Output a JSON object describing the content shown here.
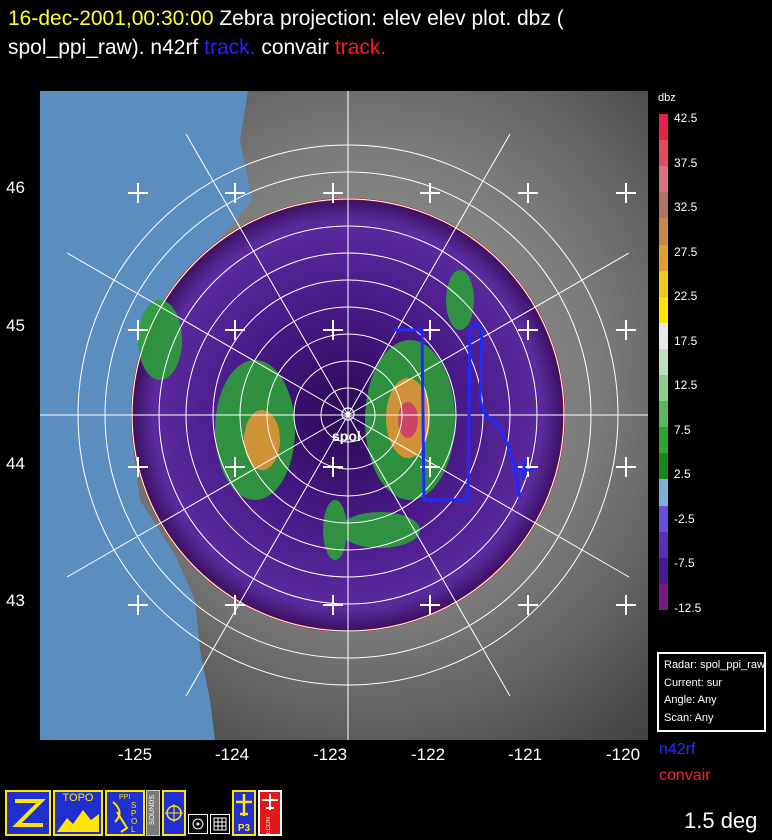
{
  "title": {
    "datetime": "16-dec-2001,00:30:00",
    "projection": "Zebra projection: elev elev  plot.  dbz (",
    "source": "spol_ppi_raw).   n42rf",
    "track1": "track.",
    "mid": "  convair",
    "track2": "track."
  },
  "map": {
    "radar_label": "spol",
    "y_labels": [
      "46",
      "45",
      "44",
      "43"
    ],
    "x_labels": [
      "-125",
      "-124",
      "-123",
      "-122",
      "-121",
      "-120"
    ]
  },
  "colorbar": {
    "units": "dbz",
    "labels": [
      "42.5",
      "37.5",
      "32.5",
      "27.5",
      "22.5",
      "17.5",
      "12.5",
      "7.5",
      "2.5",
      "-2.5",
      "-7.5",
      "-12.5"
    ],
    "colors": [
      "#e8204c",
      "#e34a66",
      "#db7184",
      "#b07565",
      "#c98a48",
      "#e0a030",
      "#f2c81c",
      "#ffe600",
      "#e8e8e8",
      "#bfe0bf",
      "#8ccf8c",
      "#5cb85c",
      "#2ea62e",
      "#178a17",
      "#7ab0d8",
      "#6a4fd8",
      "#5a2fb8",
      "#4a1a90",
      "#7a1888"
    ]
  },
  "info": {
    "radar": "Radar: spol_ppi_raw",
    "current": "Current: sur",
    "angle": "Angle: Any",
    "scan": "Scan: Any"
  },
  "legend": {
    "n42rf": "n42rf",
    "convair": "convair"
  },
  "angle_readout": "1.5 deg",
  "toolbar": {
    "topo_label": "TOPO",
    "ppi_label": "PPI",
    "spol_label": "SPOL",
    "sounds_label": "SOUNDS",
    "p3_label": "P3",
    "econ_label": "ECON"
  }
}
